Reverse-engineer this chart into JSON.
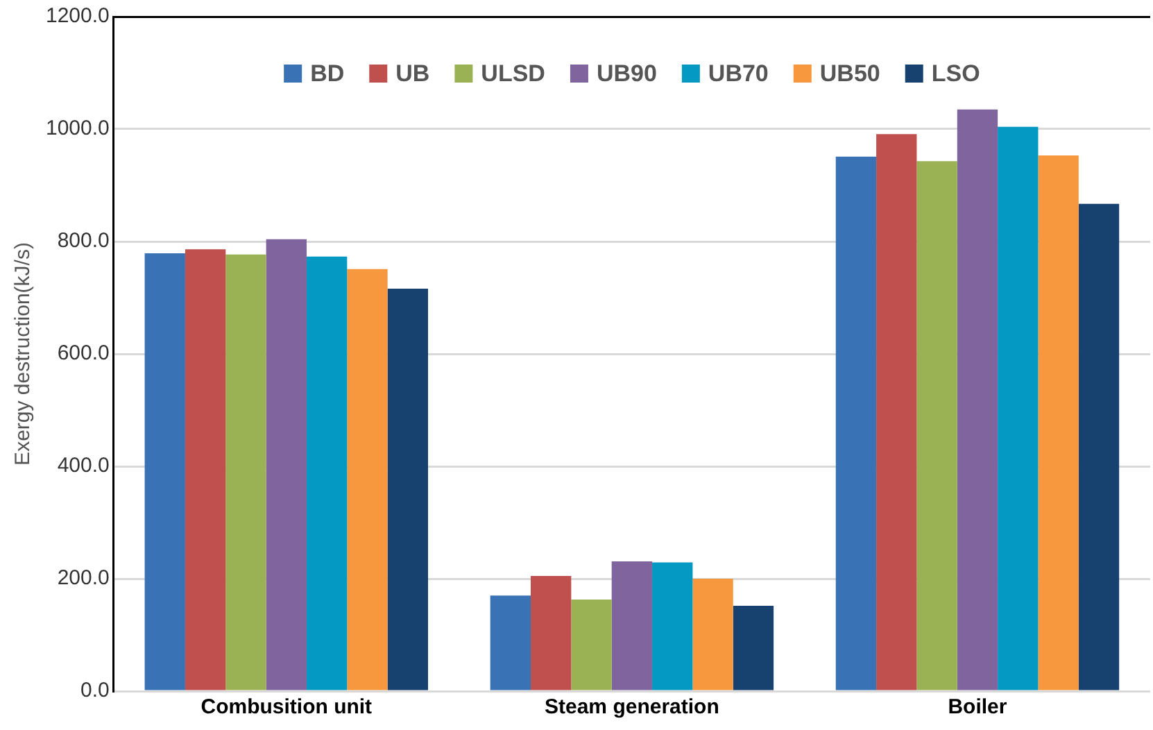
{
  "chart_data": {
    "type": "bar",
    "ylabel": "Exergy destruction(kJ/s)",
    "categories": [
      "Combusition unit",
      "Steam generation",
      "Boiler"
    ],
    "series": [
      {
        "name": "BD",
        "color": "#3a73b5",
        "values": [
          779,
          170,
          951
        ]
      },
      {
        "name": "UB",
        "color": "#bf504d",
        "values": [
          786,
          205,
          991
        ]
      },
      {
        "name": "ULSD",
        "color": "#9bb254",
        "values": [
          777,
          163,
          943
        ]
      },
      {
        "name": "UB90",
        "color": "#7f649e",
        "values": [
          804,
          231,
          1035
        ]
      },
      {
        "name": "UB70",
        "color": "#0399c3",
        "values": [
          773,
          229,
          1004
        ]
      },
      {
        "name": "UB50",
        "color": "#f8983e",
        "values": [
          751,
          200,
          953
        ]
      },
      {
        "name": "LSO",
        "color": "#17416f",
        "values": [
          716,
          152,
          867
        ]
      }
    ],
    "ylim": [
      0,
      1200
    ],
    "yticks": [
      {
        "value": 0,
        "label": "0.0"
      },
      {
        "value": 200,
        "label": "200.0"
      },
      {
        "value": 400,
        "label": "400.0"
      },
      {
        "value": 600,
        "label": "600.0"
      },
      {
        "value": 800,
        "label": "800.0"
      },
      {
        "value": 1000,
        "label": "1000.0"
      },
      {
        "value": 1200,
        "label": "1200.0"
      }
    ],
    "grid": "y",
    "legend": "top"
  }
}
